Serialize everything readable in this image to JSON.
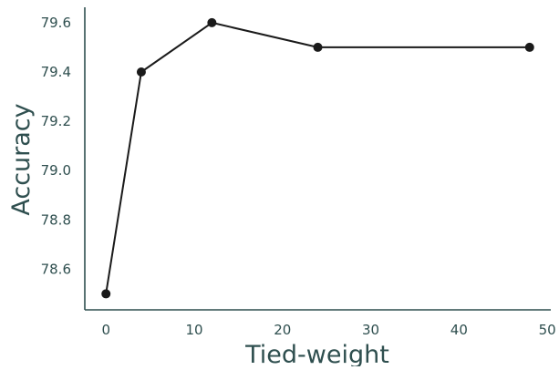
{
  "chart_data": {
    "type": "line",
    "xlabel": "Tied-weight",
    "ylabel": "Accuracy",
    "xlim": [
      -2.4,
      50.4
    ],
    "ylim": [
      78.435,
      79.655
    ],
    "x_ticks": [
      0,
      10,
      20,
      30,
      40,
      50
    ],
    "x_tick_labels": [
      "0",
      "10",
      "20",
      "30",
      "40",
      "50"
    ],
    "y_ticks": [
      78.6,
      78.8,
      79.0,
      79.2,
      79.4,
      79.6
    ],
    "y_tick_labels": [
      "78.6",
      "78.8",
      "79.0",
      "79.2",
      "79.4",
      "79.6"
    ],
    "grid": false,
    "series": [
      {
        "x": [
          0,
          4,
          12,
          24,
          48
        ],
        "values": [
          78.5,
          79.4,
          79.6,
          79.5,
          79.5
        ]
      }
    ],
    "colors": {
      "axis": "#2f4f4f",
      "line": "#1a1a1a",
      "marker": "#1a1a1a"
    }
  }
}
